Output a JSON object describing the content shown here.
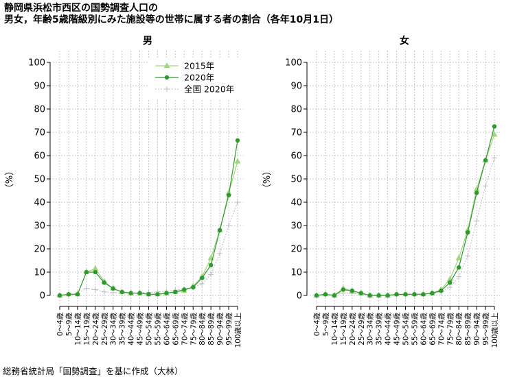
{
  "title_line1": "静岡県浜松市西区の国勢調査人口の",
  "title_line2": "男女，年齢5歳階級別にみた施設等の世帯に属する者の割合（各年10月1日）",
  "source": "総務省統計局「国勢調査」を基に作成（大林）",
  "colors": {
    "s2015": "#9fd67e",
    "s2020": "#2e9a2e",
    "national": "#bdbdbd",
    "grid": "#c8c8c8"
  },
  "chart_data": [
    {
      "type": "line",
      "title": "男",
      "ylabel": "（%）",
      "ylim": [
        0,
        100
      ],
      "yticks": [
        0,
        10,
        20,
        30,
        40,
        50,
        60,
        70,
        80,
        90,
        100
      ],
      "grid": true,
      "legend_position": "top-right",
      "categories": [
        "0～4歳",
        "5～9歳",
        "10～14歳",
        "15～19歳",
        "20～24歳",
        "25～29歳",
        "30～34歳",
        "35～39歳",
        "40～44歳",
        "45～49歳",
        "50～54歳",
        "55～59歳",
        "60～64歳",
        "65～69歳",
        "70～74歳",
        "75～79歳",
        "80～84歳",
        "85～89歳",
        "90～94歳",
        "95～99歳",
        "100歳以上"
      ],
      "series": [
        {
          "name": "2015年",
          "values": [
            0,
            0.5,
            0.5,
            10,
            11.5,
            6,
            3,
            1.5,
            1,
            1,
            0.5,
            0.5,
            1,
            1.5,
            2,
            4,
            8,
            16,
            28,
            44,
            57.5
          ]
        },
        {
          "name": "2020年",
          "values": [
            0,
            0.5,
            0.5,
            10,
            10,
            5.5,
            3,
            1.5,
            1,
            1,
            0.5,
            0.5,
            1,
            1.5,
            2.5,
            3.5,
            7.5,
            13,
            28,
            43,
            66.5
          ]
        },
        {
          "name": "全国 2020年",
          "values": [
            0,
            0.3,
            0.8,
            3,
            2.5,
            1.5,
            1.2,
            1,
            1,
            1.2,
            1.3,
            1.5,
            1.8,
            2.2,
            2.8,
            3.5,
            5,
            9,
            18,
            30,
            40
          ]
        }
      ]
    },
    {
      "type": "line",
      "title": "女",
      "ylabel": "（%）",
      "ylim": [
        0,
        100
      ],
      "yticks": [
        0,
        10,
        20,
        30,
        40,
        50,
        60,
        70,
        80,
        90,
        100
      ],
      "grid": true,
      "categories": [
        "0～4歳",
        "5～9歳",
        "10～14歳",
        "15～19歳",
        "20～24歳",
        "25～29歳",
        "30～34歳",
        "35～39歳",
        "40～44歳",
        "45～49歳",
        "50～54歳",
        "55～59歳",
        "60～64歳",
        "65～69歳",
        "70～74歳",
        "75～79歳",
        "80～84歳",
        "85～89歳",
        "90～94歳",
        "95～99歳",
        "100歳以上"
      ],
      "series": [
        {
          "name": "2015年",
          "values": [
            0,
            0.5,
            0,
            3,
            2,
            1,
            0,
            0,
            0,
            0.5,
            0.5,
            0.5,
            0.5,
            1,
            2.5,
            7,
            16,
            28,
            45.5,
            58,
            69
          ]
        },
        {
          "name": "2020年",
          "values": [
            0,
            0.5,
            0,
            2.5,
            2,
            1,
            0,
            0,
            0,
            0.5,
            0.5,
            0.5,
            0.5,
            1,
            2,
            5.5,
            12,
            27,
            44,
            58,
            72.5
          ]
        },
        {
          "name": "全国 2020年",
          "values": [
            0,
            0.2,
            0.3,
            1,
            0.8,
            0.5,
            0.3,
            0.3,
            0.3,
            0.3,
            0.4,
            0.5,
            0.6,
            0.8,
            1.5,
            3.5,
            8,
            17,
            32,
            47,
            59
          ]
        }
      ]
    }
  ]
}
